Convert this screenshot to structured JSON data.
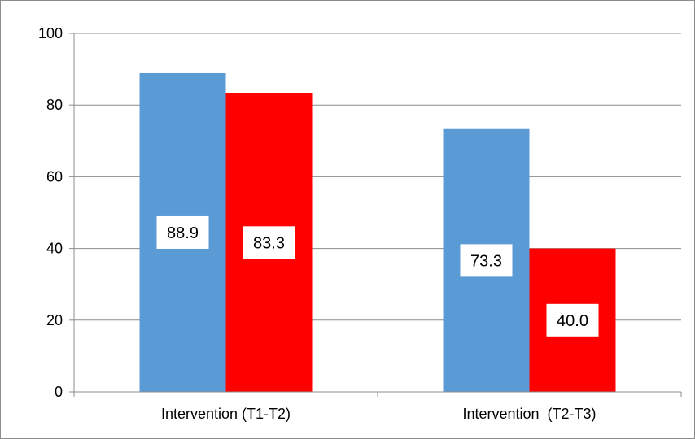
{
  "chart_data": {
    "type": "bar",
    "categories": [
      "Intervention (T1-T2)",
      "Intervention  (T2-T3)"
    ],
    "series": [
      {
        "values": [
          88.9,
          73.3
        ],
        "color": "#5b9bd5"
      },
      {
        "values": [
          83.3,
          40.0
        ],
        "color": "#ff0000"
      }
    ],
    "data_labels": [
      [
        "88.9",
        "73.3"
      ],
      [
        "83.3",
        "40.0"
      ]
    ],
    "y_ticks": [
      "0",
      "20",
      "40",
      "60",
      "80",
      "100"
    ],
    "title": "",
    "xlabel": "",
    "ylabel": "",
    "ylim": [
      0,
      100
    ],
    "grid": true,
    "legend": "none"
  }
}
